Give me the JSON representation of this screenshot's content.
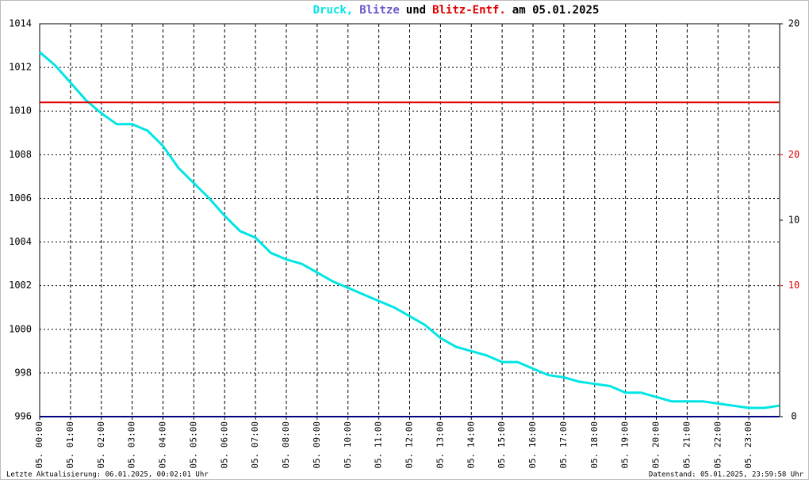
{
  "chart_data": {
    "type": "line",
    "title_parts": [
      {
        "text": "Druck,",
        "color": "#00e5e5"
      },
      {
        "text": "Blitze",
        "color": "#6a5acd"
      },
      {
        "text": "und",
        "color": "#000000"
      },
      {
        "text": "Blitz-Entf.",
        "color": "#e00000"
      },
      {
        "text": "am 05.01.2025",
        "color": "#000000"
      }
    ],
    "footer_left": "Letzte Aktualisierung: 06.01.2025, 00:02:01 Uhr",
    "footer_right": "Datenstand: 05.01.2025, 23:59:58 Uhr",
    "xlim": [
      0,
      24
    ],
    "xticks": [
      {
        "value": 0,
        "label": "05. 00:00"
      },
      {
        "value": 1,
        "label": "05. 01:00"
      },
      {
        "value": 2,
        "label": "05. 02:00"
      },
      {
        "value": 3,
        "label": "05. 03:00"
      },
      {
        "value": 4,
        "label": "05. 04:00"
      },
      {
        "value": 5,
        "label": "05. 05:00"
      },
      {
        "value": 6,
        "label": "05. 06:00"
      },
      {
        "value": 7,
        "label": "05. 07:00"
      },
      {
        "value": 8,
        "label": "05. 08:00"
      },
      {
        "value": 9,
        "label": "05. 09:00"
      },
      {
        "value": 10,
        "label": "05. 10:00"
      },
      {
        "value": 11,
        "label": "05. 11:00"
      },
      {
        "value": 12,
        "label": "05. 12:00"
      },
      {
        "value": 13,
        "label": "05. 13:00"
      },
      {
        "value": 14,
        "label": "05. 14:00"
      },
      {
        "value": 15,
        "label": "05. 15:00"
      },
      {
        "value": 16,
        "label": "05. 16:00"
      },
      {
        "value": 17,
        "label": "05. 17:00"
      },
      {
        "value": 18,
        "label": "05. 18:00"
      },
      {
        "value": 19,
        "label": "05. 19:00"
      },
      {
        "value": 20,
        "label": "05. 20:00"
      },
      {
        "value": 21,
        "label": "05. 21:00"
      },
      {
        "value": 22,
        "label": "05. 22:00"
      },
      {
        "value": 23,
        "label": "05. 23:00"
      }
    ],
    "ylim": [
      996,
      1014
    ],
    "yticks": [
      996,
      998,
      1000,
      1002,
      1004,
      1006,
      1008,
      1010,
      1012,
      1014
    ],
    "y2lim": [
      0,
      20
    ],
    "y2ticks": [
      0,
      10,
      20
    ],
    "y3lim": [
      0,
      30
    ],
    "y3ticks": [
      10,
      20
    ],
    "y3color": "#e00000",
    "grid": true,
    "series": [
      {
        "name": "Druck",
        "color": "#00e5e5",
        "axis": "y",
        "x": [
          0,
          0.5,
          1,
          1.5,
          2,
          2.5,
          3,
          3.5,
          4,
          4.5,
          5,
          5.5,
          6,
          6.5,
          7,
          7.5,
          8,
          8.5,
          9,
          9.5,
          10,
          10.5,
          11,
          11.5,
          12,
          12.5,
          13,
          13.5,
          14,
          14.5,
          15,
          15.5,
          16,
          16.5,
          17,
          17.5,
          18,
          18.5,
          19,
          19.5,
          20,
          20.5,
          21,
          21.5,
          22,
          22.5,
          23,
          23.5,
          23.98
        ],
        "values": [
          1012.7,
          1012.1,
          1011.3,
          1010.5,
          1009.9,
          1009.4,
          1009.4,
          1009.1,
          1008.4,
          1007.4,
          1006.7,
          1006.0,
          1005.2,
          1004.5,
          1004.2,
          1003.5,
          1003.2,
          1003.0,
          1002.6,
          1002.2,
          1001.9,
          1001.6,
          1001.3,
          1001.0,
          1000.6,
          1000.2,
          999.6,
          999.2,
          999.0,
          998.8,
          998.5,
          998.5,
          998.2,
          997.9,
          997.8,
          997.6,
          997.5,
          997.4,
          997.1,
          997.1,
          996.9,
          996.7,
          996.7,
          996.7,
          996.6,
          996.5,
          996.4,
          996.4,
          996.5
        ]
      },
      {
        "name": "Blitz-Entf.",
        "color": "#e00000",
        "axis": "y3",
        "x": [
          0,
          23.98
        ],
        "values": [
          24,
          24
        ]
      },
      {
        "name": "Blitze",
        "color": "#000080",
        "axis": "y2",
        "x": [
          0,
          23.98
        ],
        "values": [
          0,
          0
        ]
      }
    ]
  }
}
